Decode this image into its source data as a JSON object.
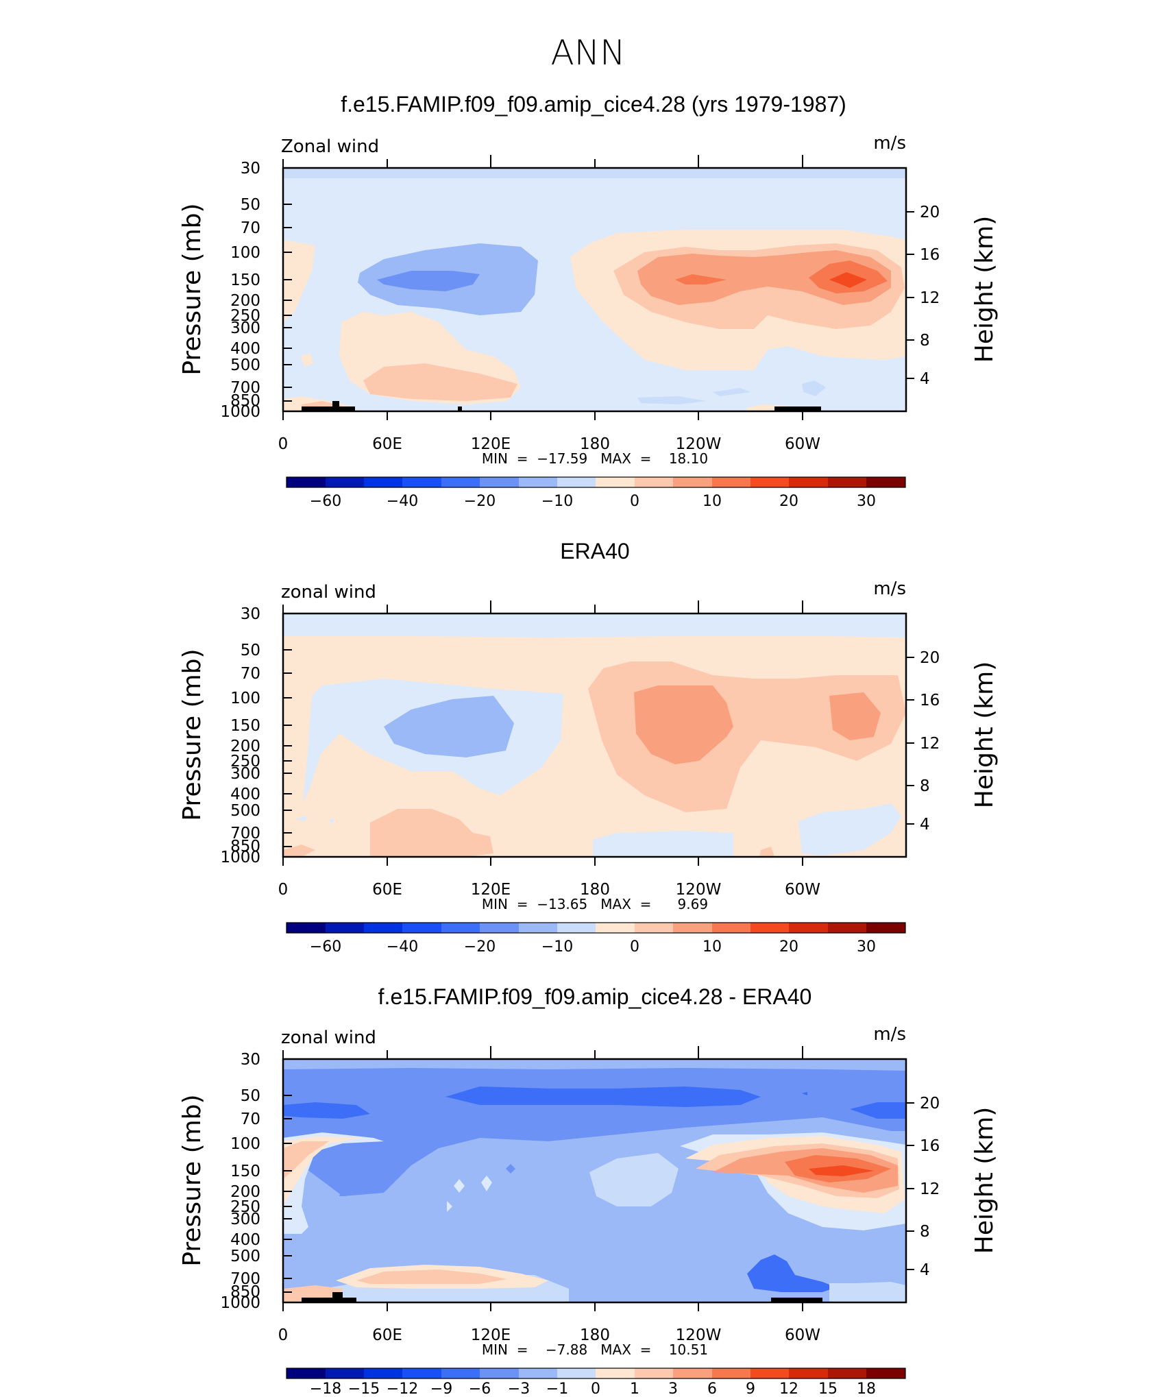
{
  "figure": {
    "title": "ANN"
  },
  "panels": [
    {
      "title": "f.e15.FAMIP.f09_f09.amip_cice4.28 (yrs 1979-1987)",
      "left_label": "Zonal wind",
      "right_label": "m/s",
      "minmax": "MIN  =  −17.59   MAX  =    18.10",
      "colorbar_labels": [
        "−60",
        "−40",
        "−20",
        "−10",
        "0",
        "10",
        "20",
        "30"
      ]
    },
    {
      "title": "ERA40",
      "left_label": "zonal wind",
      "right_label": "m/s",
      "minmax": "MIN  =  −13.65   MAX  =      9.69",
      "colorbar_labels": [
        "−60",
        "−40",
        "−20",
        "−10",
        "0",
        "10",
        "20",
        "30"
      ]
    },
    {
      "title": "f.e15.FAMIP.f09_f09.amip_cice4.28 - ERA40",
      "left_label": "zonal wind",
      "right_label": "m/s",
      "minmax": "MIN  =    −7.88   MAX  =    10.51",
      "colorbar_labels": [
        "−18",
        "−15",
        "−12",
        "−9",
        "−6",
        "−3",
        "−1",
        "0",
        "1",
        "3",
        "6",
        "9",
        "12",
        "15",
        "18"
      ]
    }
  ],
  "chart_data": {
    "type": "heatmap",
    "title": "ANN",
    "xlabel": "",
    "ylabel": "Pressure (mb)",
    "y2label": "Height (km)",
    "x_tick_labels": [
      "0",
      "60E",
      "120E",
      "180",
      "120W",
      "60W"
    ],
    "x_tick_lon": [
      0,
      60,
      120,
      180,
      240,
      300
    ],
    "xlim": [
      0,
      360
    ],
    "y_tick_labels": [
      "30",
      "50",
      "70",
      "100",
      "150",
      "200",
      "250",
      "300",
      "400",
      "500",
      "700",
      "850",
      "1000"
    ],
    "y_tick_values": [
      30,
      50,
      70,
      100,
      150,
      200,
      250,
      300,
      400,
      500,
      700,
      850,
      1000
    ],
    "ylim": [
      1000,
      30
    ],
    "y2_tick_labels": [
      "4",
      "8",
      "12",
      "16",
      "20"
    ],
    "y2_tick_values": [
      4,
      8,
      12,
      16,
      20
    ],
    "colormap": [
      "#00007f",
      "#0019b3",
      "#0033e0",
      "#1a4ff5",
      "#3d6ef7",
      "#6b92f4",
      "#9bb8f7",
      "#c9dcfa",
      "#dceafb",
      "#fde7d3",
      "#fcc9ae",
      "#f9a07e",
      "#f7774e",
      "#f34a1f",
      "#d62a0c",
      "#ac1607",
      "#7b0000"
    ],
    "series": [
      {
        "name": "f.e15.FAMIP.f09_f09.amip_cice4.28 (yrs 1979-1987)",
        "min": -17.59,
        "max": 18.1,
        "contour_levels": [
          -60,
          -50,
          -40,
          -30,
          -20,
          -15,
          -10,
          -5,
          0,
          5,
          10,
          15,
          20,
          25,
          30,
          35
        ]
      },
      {
        "name": "ERA40",
        "min": -13.65,
        "max": 9.69,
        "contour_levels": [
          -60,
          -50,
          -40,
          -30,
          -20,
          -15,
          -10,
          -5,
          0,
          5,
          10,
          15,
          20,
          25,
          30,
          35
        ]
      },
      {
        "name": "f.e15.FAMIP.f09_f09.amip_cice4.28 - ERA40",
        "min": -7.88,
        "max": 10.51,
        "contour_levels": [
          -18,
          -15,
          -12,
          -9,
          -6,
          -3,
          -1,
          0,
          1,
          3,
          6,
          9,
          12,
          15,
          18
        ]
      }
    ]
  }
}
